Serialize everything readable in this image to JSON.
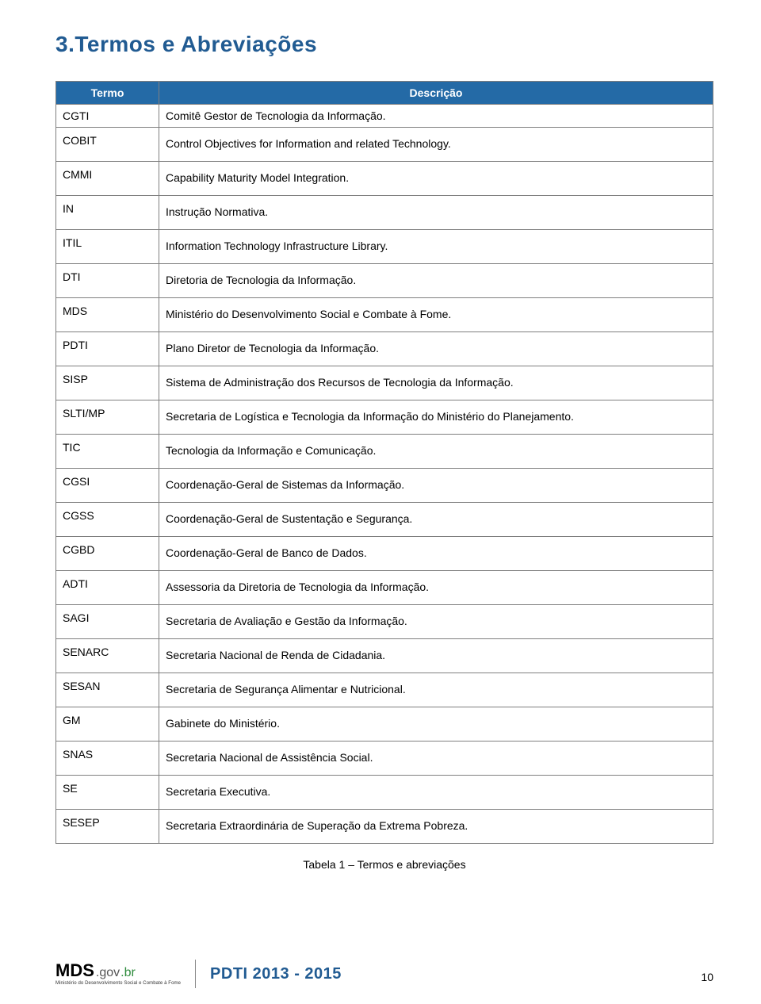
{
  "colors": {
    "heading": "#215b92",
    "table_header_bg": "#246aa6",
    "table_header_text": "#ffffff",
    "cell_border": "#7f7f7f",
    "body_text": "#000000",
    "logo_green": "#2e8b3d",
    "background": "#ffffff"
  },
  "heading": "3.Termos e Abreviações",
  "table": {
    "headers": {
      "col1": "Termo",
      "col2": "Descrição"
    },
    "rows": [
      {
        "term": "CGTI",
        "desc": "Comitê Gestor de Tecnologia da Informação."
      },
      {
        "term": "COBIT",
        "desc": "Control Objectives for Information and related Technology."
      },
      {
        "term": "CMMI",
        "desc": "Capability Maturity Model Integration."
      },
      {
        "term": "IN",
        "desc": "Instrução Normativa."
      },
      {
        "term": "ITIL",
        "desc": "Information Technology Infrastructure Library."
      },
      {
        "term": "DTI",
        "desc": "Diretoria de Tecnologia da Informação."
      },
      {
        "term": "MDS",
        "desc": "Ministério do Desenvolvimento Social e Combate à Fome."
      },
      {
        "term": "PDTI",
        "desc": "Plano Diretor de Tecnologia da Informação."
      },
      {
        "term": "SISP",
        "desc": "Sistema de Administração dos Recursos de Tecnologia da Informação."
      },
      {
        "term": "SLTI/MP",
        "desc": "Secretaria de Logística e Tecnologia da Informação do Ministério do Planejamento."
      },
      {
        "term": "TIC",
        "desc": "Tecnologia da Informação e Comunicação."
      },
      {
        "term": "CGSI",
        "desc": "Coordenação-Geral de Sistemas da Informação."
      },
      {
        "term": "CGSS",
        "desc": "Coordenação-Geral de Sustentação e Segurança."
      },
      {
        "term": "CGBD",
        "desc": "Coordenação-Geral de Banco de Dados."
      },
      {
        "term": "ADTI",
        "desc": "Assessoria da Diretoria de Tecnologia da Informação."
      },
      {
        "term": "SAGI",
        "desc": "Secretaria de Avaliação e Gestão da Informação."
      },
      {
        "term": "SENARC",
        "desc": "Secretaria Nacional de Renda de Cidadania."
      },
      {
        "term": "SESAN",
        "desc": "Secretaria de Segurança Alimentar e Nutricional."
      },
      {
        "term": "GM",
        "desc": "Gabinete do Ministério."
      },
      {
        "term": "SNAS",
        "desc": "Secretaria Nacional de Assistência Social."
      },
      {
        "term": "SE",
        "desc": "Secretaria Executiva."
      },
      {
        "term": "SESEP",
        "desc": "Secretaria Extraordinária de Superação da Extrema Pobreza."
      }
    ]
  },
  "caption": "Tabela 1 – Termos e abreviações",
  "footer": {
    "logo_mds": "MDS",
    "logo_gov": ".gov",
    "logo_br": ".br",
    "logo_sub": "Ministério do Desenvolvimento Social e Combate à Fome",
    "title": "PDTI 2013 - 2015",
    "page": "10"
  }
}
